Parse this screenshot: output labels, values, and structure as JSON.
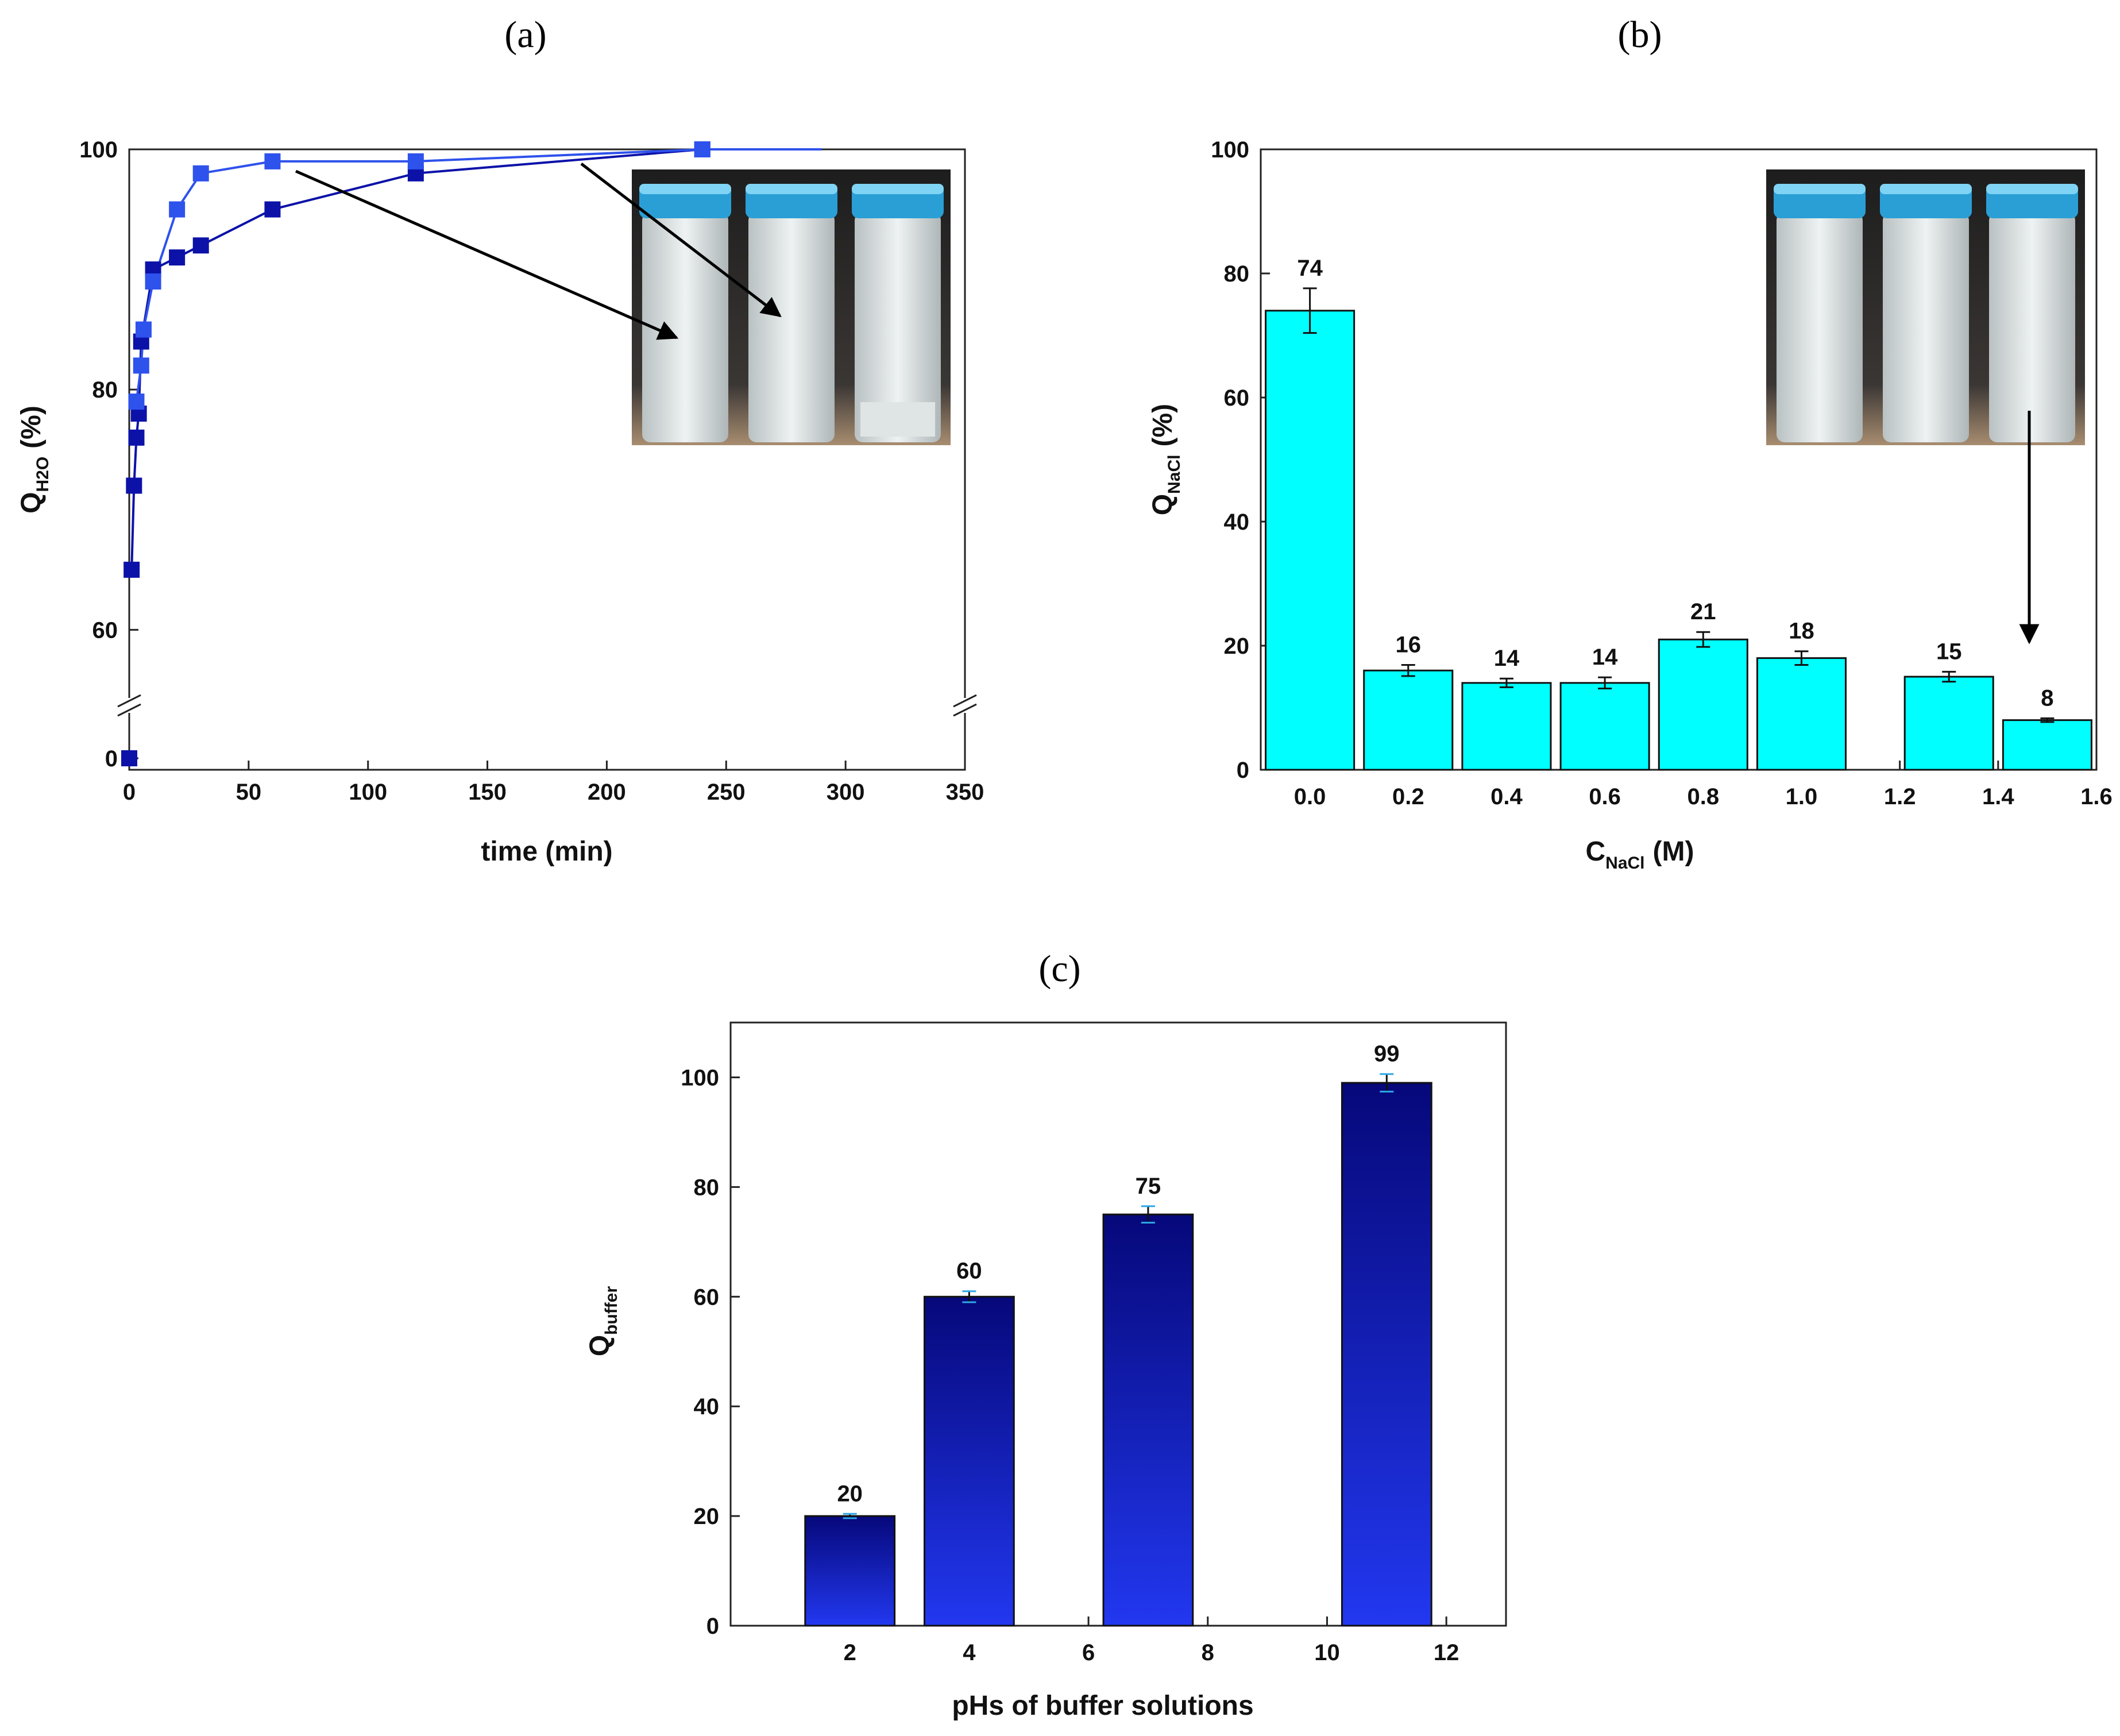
{
  "colors": {
    "series_dark": "#0c12a8",
    "series_light": "#2e52ec",
    "bar_cyan": "#00ffff",
    "bar_navy_top": "#06087a",
    "bar_navy_bottom": "#2238f0",
    "cap_blue": "#2ea8e6"
  },
  "chart_data": [
    {
      "panel": "a",
      "panel_label": "(a)",
      "type": "scatter",
      "xlabel": "time (min)",
      "ylabel_main": "Q",
      "ylabel_sub": "H2O",
      "ylabel_unit": "(%)",
      "xlim": [
        0,
        350
      ],
      "x_ticks": [
        0,
        50,
        100,
        150,
        200,
        250,
        300,
        350
      ],
      "y_ticks_upper": [
        60,
        80,
        100
      ],
      "y_ticks_lower": [
        0
      ],
      "y_break": true,
      "ylim_upper": [
        56,
        100
      ],
      "series": [
        {
          "name": "dark",
          "color_key": "series_dark",
          "points": [
            [
              0,
              0
            ],
            [
              1,
              65
            ],
            [
              2,
              72
            ],
            [
              3,
              76
            ],
            [
              4,
              78
            ],
            [
              5,
              84
            ],
            [
              10,
              90
            ],
            [
              20,
              91
            ],
            [
              30,
              92
            ],
            [
              60,
              95
            ],
            [
              120,
              98
            ],
            [
              240,
              100
            ]
          ]
        },
        {
          "name": "light",
          "color_key": "series_light",
          "points": [
            [
              3,
              79
            ],
            [
              5,
              82
            ],
            [
              6,
              85
            ],
            [
              10,
              89
            ],
            [
              20,
              95
            ],
            [
              30,
              98
            ],
            [
              60,
              99
            ],
            [
              120,
              99
            ],
            [
              240,
              100
            ]
          ]
        }
      ],
      "inset": "photo of three vials",
      "arrows": 2
    },
    {
      "panel": "b",
      "panel_label": "(b)",
      "type": "bar",
      "xlabel_main": "C",
      "xlabel_sub": "NaCl",
      "xlabel_unit": "(M)",
      "ylabel_main": "Q",
      "ylabel_sub": "NaCl",
      "ylabel_unit": "(%)",
      "xlim": [
        -0.1,
        1.6
      ],
      "ylim": [
        0,
        100
      ],
      "x_ticks": [
        "0.0",
        "0.2",
        "0.4",
        "0.6",
        "0.8",
        "1.0",
        "1.2",
        "1.4",
        "1.6"
      ],
      "y_ticks": [
        0,
        20,
        40,
        60,
        80,
        100
      ],
      "bar_width": 0.18,
      "bars": [
        {
          "x": 0.0,
          "value": 74,
          "error": 3.6,
          "label": "74"
        },
        {
          "x": 0.2,
          "value": 16,
          "error": 0.9,
          "label": "16"
        },
        {
          "x": 0.4,
          "value": 14,
          "error": 0.7,
          "label": "14"
        },
        {
          "x": 0.6,
          "value": 14,
          "error": 0.9,
          "label": "14"
        },
        {
          "x": 0.8,
          "value": 21,
          "error": 1.2,
          "label": "21"
        },
        {
          "x": 1.0,
          "value": 18,
          "error": 1.1,
          "label": "18"
        },
        {
          "x": 1.3,
          "value": 15,
          "error": 0.8,
          "label": "15"
        },
        {
          "x": 1.5,
          "value": 8,
          "error": 0.3,
          "label": "8"
        }
      ],
      "inset": "photo of three vials",
      "arrows": 1
    },
    {
      "panel": "c",
      "panel_label": "(c)",
      "type": "bar",
      "xlabel": "pHs of buffer solutions",
      "ylabel_main": "Q",
      "ylabel_sub": "buffer",
      "xlim": [
        0,
        13
      ],
      "ylim": [
        0,
        110
      ],
      "x_ticks": [
        2,
        4,
        6,
        8,
        10,
        12
      ],
      "y_ticks": [
        0,
        20,
        40,
        60,
        80,
        100
      ],
      "bar_width": 1.5,
      "bars": [
        {
          "x": 2,
          "value": 20,
          "error": 0.4,
          "label": "20"
        },
        {
          "x": 4,
          "value": 60,
          "error": 1.0,
          "label": "60"
        },
        {
          "x": 7,
          "value": 75,
          "error": 1.5,
          "label": "75"
        },
        {
          "x": 11,
          "value": 99,
          "error": 1.6,
          "label": "99"
        }
      ]
    }
  ]
}
